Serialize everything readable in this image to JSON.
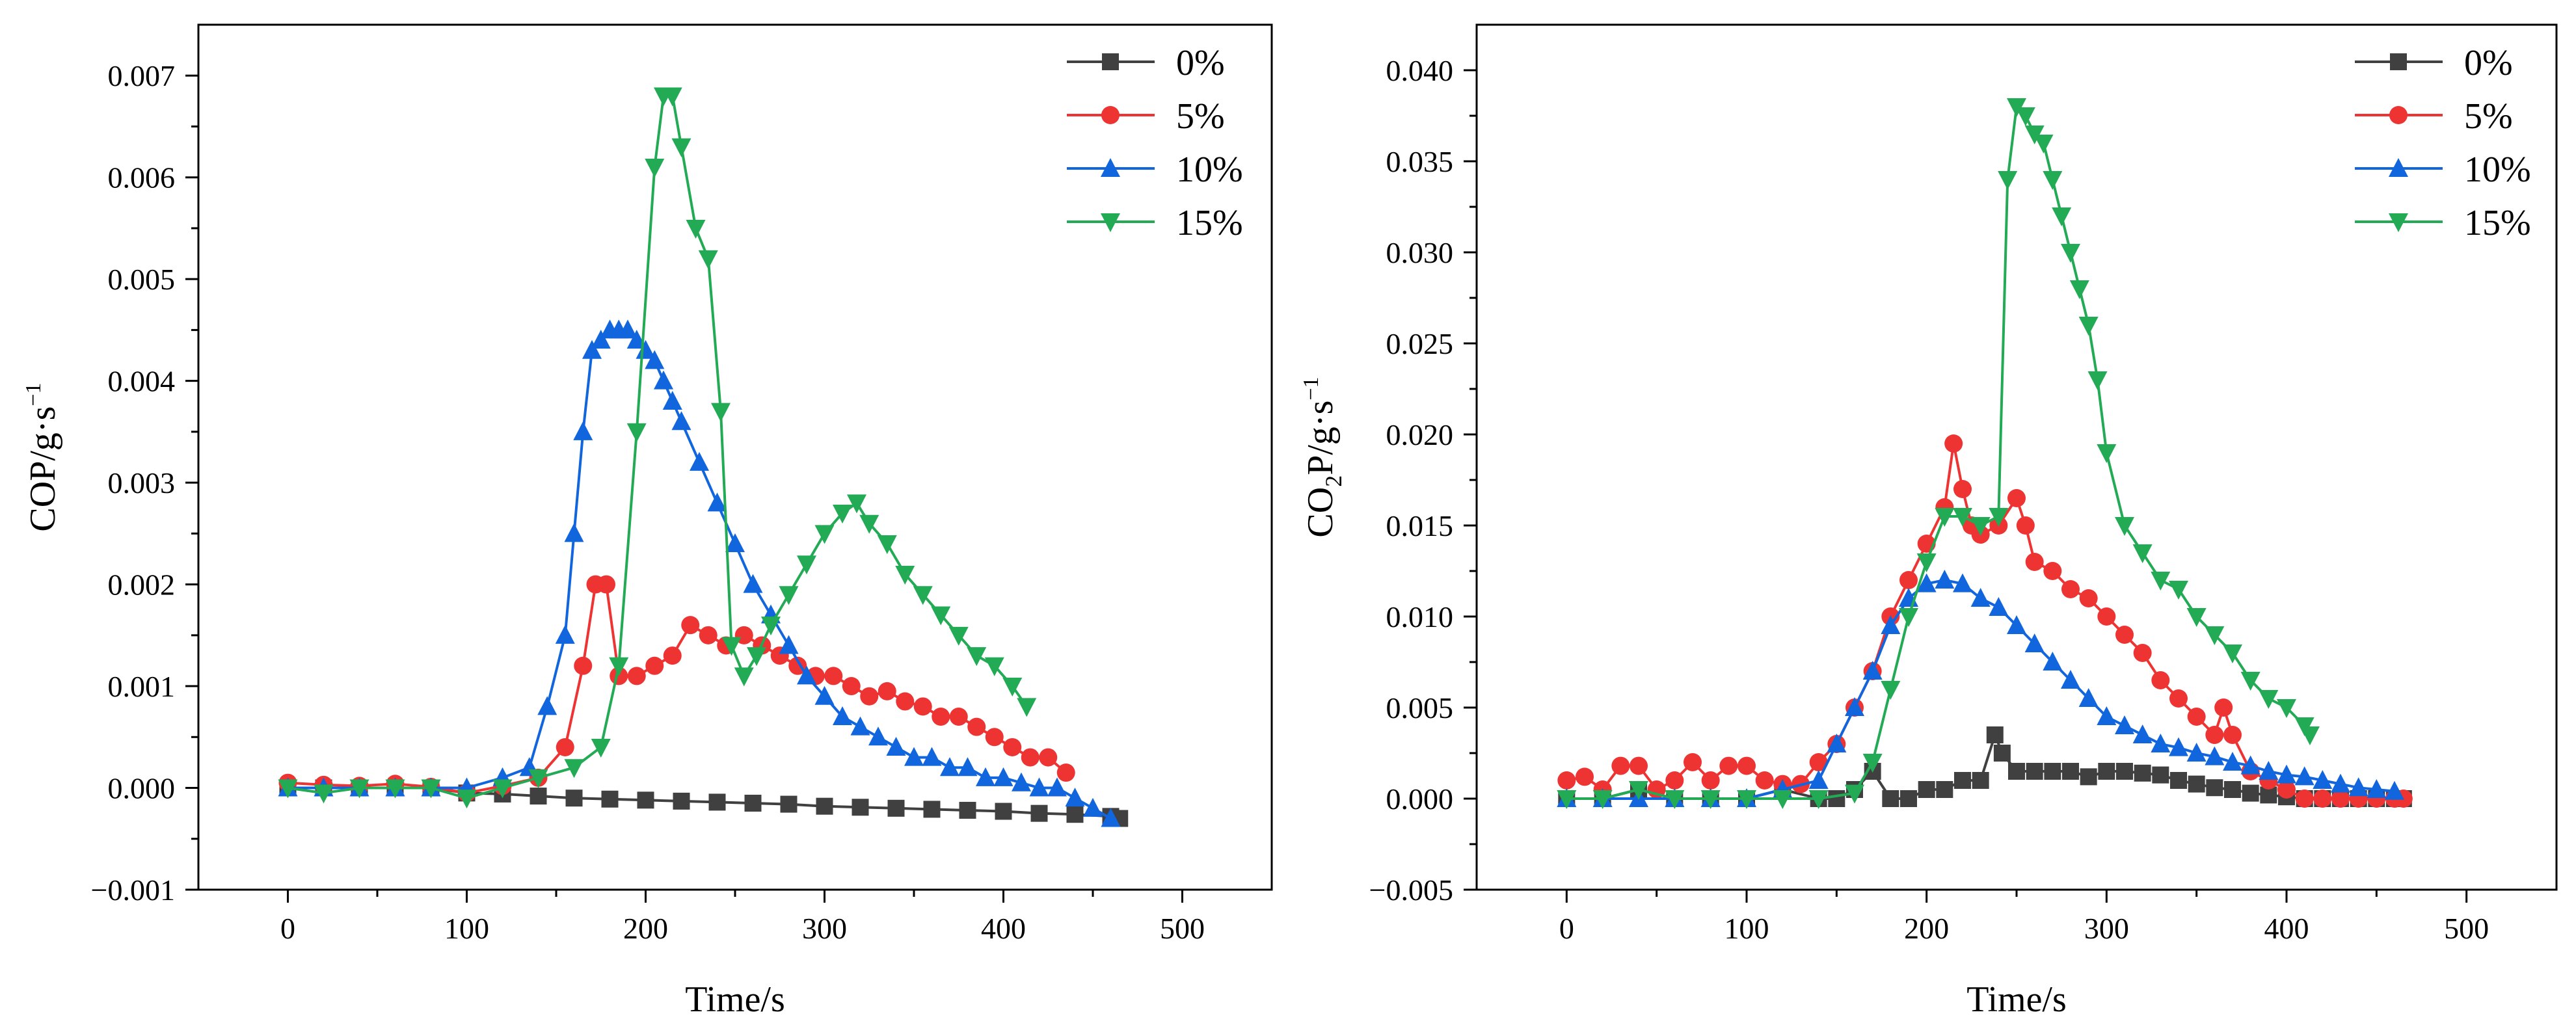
{
  "chart_data": [
    {
      "type": "line",
      "xlabel": "Time/s",
      "ylabel_text": "COP/g·s",
      "ylabel_sup": "−1",
      "xlim": [
        -50,
        550
      ],
      "ylim": [
        -0.001,
        0.0075
      ],
      "x_ticks": [
        0,
        100,
        200,
        300,
        400,
        500
      ],
      "x_tick_labels": [
        "0",
        "100",
        "200",
        "300",
        "400",
        "500"
      ],
      "y_ticks": [
        -0.001,
        0.0,
        0.001,
        0.002,
        0.003,
        0.004,
        0.005,
        0.006,
        0.007
      ],
      "y_tick_labels": [
        "−0.001",
        "0.000",
        "0.001",
        "0.002",
        "0.003",
        "0.004",
        "0.005",
        "0.006",
        "0.007"
      ],
      "legend_position": "top-right",
      "series": [
        {
          "name": "0%",
          "color": "#404040",
          "marker": "square",
          "x": [
            0,
            20,
            40,
            60,
            80,
            100,
            120,
            140,
            160,
            180,
            200,
            220,
            240,
            260,
            280,
            300,
            320,
            340,
            360,
            380,
            400,
            420,
            440,
            460,
            465
          ],
          "y": [
            0.0,
            0.0,
            0.0,
            0.0,
            0.0,
            -5e-05,
            -6e-05,
            -8e-05,
            -0.0001,
            -0.00011,
            -0.00012,
            -0.00013,
            -0.00014,
            -0.00015,
            -0.00016,
            -0.00018,
            -0.00019,
            -0.0002,
            -0.00021,
            -0.00022,
            -0.00023,
            -0.00025,
            -0.00026,
            -0.00028,
            -0.0003
          ]
        },
        {
          "name": "5%",
          "color": "#ee3333",
          "marker": "circle",
          "x": [
            0,
            20,
            40,
            60,
            80,
            100,
            120,
            140,
            155,
            165,
            172,
            178,
            185,
            195,
            205,
            215,
            225,
            235,
            245,
            255,
            265,
            275,
            285,
            295,
            305,
            315,
            325,
            335,
            345,
            355,
            365,
            375,
            385,
            395,
            405,
            415,
            425,
            435
          ],
          "y": [
            5e-05,
            3e-05,
            2e-05,
            4e-05,
            1e-05,
            -5e-05,
            2e-05,
            0.0001,
            0.0004,
            0.0012,
            0.002,
            0.002,
            0.0011,
            0.0011,
            0.0012,
            0.0013,
            0.0016,
            0.0015,
            0.0014,
            0.0015,
            0.0014,
            0.0013,
            0.0012,
            0.0011,
            0.0011,
            0.001,
            0.0009,
            0.00095,
            0.00085,
            0.0008,
            0.0007,
            0.0007,
            0.0006,
            0.0005,
            0.0004,
            0.0003,
            0.0003,
            0.00015
          ]
        },
        {
          "name": "10%",
          "color": "#1166dd",
          "marker": "triangle-up",
          "x": [
            0,
            20,
            40,
            60,
            80,
            100,
            120,
            135,
            145,
            155,
            160,
            165,
            170,
            175,
            180,
            185,
            190,
            195,
            200,
            205,
            210,
            215,
            220,
            230,
            240,
            250,
            260,
            270,
            280,
            290,
            300,
            310,
            320,
            330,
            340,
            350,
            360,
            370,
            380,
            390,
            400,
            410,
            420,
            430,
            440,
            450,
            460
          ],
          "y": [
            0.0,
            0.0,
            0.0,
            0.0,
            0.0,
            0.0,
            0.0001,
            0.0002,
            0.0008,
            0.0015,
            0.0025,
            0.0035,
            0.0043,
            0.0044,
            0.0045,
            0.0045,
            0.0045,
            0.0044,
            0.0043,
            0.0042,
            0.004,
            0.0038,
            0.0036,
            0.0032,
            0.0028,
            0.0024,
            0.002,
            0.0017,
            0.0014,
            0.0011,
            0.0009,
            0.0007,
            0.0006,
            0.0005,
            0.0004,
            0.0003,
            0.0003,
            0.0002,
            0.0002,
            0.0001,
            0.0001,
            5e-05,
            0.0,
            0.0,
            -0.0001,
            -0.0002,
            -0.0003
          ]
        },
        {
          "name": "15%",
          "color": "#22aa55",
          "marker": "triangle-down",
          "x": [
            0,
            20,
            40,
            60,
            80,
            100,
            120,
            140,
            160,
            175,
            185,
            195,
            205,
            210,
            215,
            220,
            228,
            235,
            242,
            248,
            255,
            262,
            270,
            280,
            290,
            300,
            310,
            318,
            325,
            335,
            345,
            355,
            365,
            375,
            385,
            395,
            405,
            413
          ],
          "y": [
            0.0,
            -5e-05,
            0.0,
            0.0,
            0.0,
            -0.0001,
            0.0,
            0.0001,
            0.0002,
            0.0004,
            0.0012,
            0.0035,
            0.0061,
            0.0068,
            0.0068,
            0.0063,
            0.0055,
            0.0052,
            0.0037,
            0.0014,
            0.0011,
            0.0013,
            0.0016,
            0.0019,
            0.0022,
            0.0025,
            0.0027,
            0.0028,
            0.0026,
            0.0024,
            0.0021,
            0.0019,
            0.0017,
            0.0015,
            0.0013,
            0.0012,
            0.001,
            0.0008
          ]
        }
      ]
    },
    {
      "type": "line",
      "xlabel": "Time/s",
      "ylabel_text": "CO",
      "ylabel_sub": "2",
      "ylabel_text2": "P/g·s",
      "ylabel_sup": "−1",
      "xlim": [
        -50,
        550
      ],
      "ylim": [
        -0.005,
        0.0425
      ],
      "x_ticks": [
        0,
        100,
        200,
        300,
        400,
        500
      ],
      "x_tick_labels": [
        "0",
        "100",
        "200",
        "300",
        "400",
        "500"
      ],
      "y_ticks": [
        -0.005,
        0.0,
        0.005,
        0.01,
        0.015,
        0.02,
        0.025,
        0.03,
        0.035,
        0.04
      ],
      "y_tick_labels": [
        "−0.005",
        "0.000",
        "0.005",
        "0.010",
        "0.015",
        "0.020",
        "0.025",
        "0.030",
        "0.035",
        "0.040"
      ],
      "legend_position": "top-right",
      "series": [
        {
          "name": "0%",
          "color": "#404040",
          "marker": "square",
          "x": [
            0,
            20,
            40,
            60,
            80,
            100,
            120,
            140,
            150,
            160,
            170,
            180,
            190,
            200,
            210,
            220,
            230,
            238,
            242,
            250,
            260,
            270,
            280,
            290,
            300,
            310,
            320,
            330,
            340,
            350,
            360,
            370,
            380,
            390,
            400,
            410,
            420,
            430,
            440,
            450,
            460,
            465
          ],
          "y": [
            0.0,
            0.0,
            0.0005,
            0.0,
            0.0,
            0.0,
            0.0005,
            0.0,
            0.0,
            0.0005,
            0.0015,
            0.0,
            0.0,
            0.0005,
            0.0005,
            0.001,
            0.001,
            0.0035,
            0.0025,
            0.0015,
            0.0015,
            0.0015,
            0.0015,
            0.0012,
            0.0015,
            0.0015,
            0.0014,
            0.0013,
            0.001,
            0.0008,
            0.0006,
            0.0005,
            0.0003,
            0.0002,
            0.0001,
            0.0,
            0.0,
            0.0,
            0.0,
            0.0,
            0.0,
            0.0
          ]
        },
        {
          "name": "5%",
          "color": "#ee3333",
          "marker": "circle",
          "x": [
            0,
            10,
            20,
            30,
            40,
            50,
            60,
            70,
            80,
            90,
            100,
            110,
            120,
            130,
            140,
            150,
            160,
            170,
            180,
            190,
            200,
            210,
            215,
            220,
            225,
            230,
            240,
            250,
            255,
            260,
            270,
            280,
            290,
            300,
            310,
            320,
            330,
            340,
            350,
            360,
            365,
            370,
            380,
            390,
            400,
            410,
            420,
            430,
            440,
            450,
            460,
            465
          ],
          "y": [
            0.001,
            0.0012,
            0.0005,
            0.0018,
            0.0018,
            0.0005,
            0.001,
            0.002,
            0.001,
            0.0018,
            0.0018,
            0.001,
            0.0008,
            0.0008,
            0.002,
            0.003,
            0.005,
            0.007,
            0.01,
            0.012,
            0.014,
            0.016,
            0.0195,
            0.017,
            0.015,
            0.0145,
            0.015,
            0.0165,
            0.015,
            0.013,
            0.0125,
            0.0115,
            0.011,
            0.01,
            0.009,
            0.008,
            0.0065,
            0.0055,
            0.0045,
            0.0035,
            0.005,
            0.0035,
            0.0015,
            0.001,
            0.0005,
            0.0,
            0.0,
            0.0,
            0.0,
            0.0,
            0.0,
            0.0
          ]
        },
        {
          "name": "10%",
          "color": "#1166dd",
          "marker": "triangle-up",
          "x": [
            0,
            20,
            40,
            60,
            80,
            100,
            120,
            140,
            150,
            160,
            170,
            180,
            190,
            200,
            210,
            220,
            230,
            240,
            250,
            260,
            270,
            280,
            290,
            300,
            310,
            320,
            330,
            340,
            350,
            360,
            370,
            380,
            390,
            400,
            410,
            420,
            430,
            440,
            450,
            460
          ],
          "y": [
            0.0,
            0.0,
            0.0,
            0.0,
            0.0,
            0.0,
            0.0005,
            0.001,
            0.003,
            0.005,
            0.007,
            0.0095,
            0.011,
            0.0118,
            0.012,
            0.0118,
            0.011,
            0.0105,
            0.0095,
            0.0085,
            0.0075,
            0.0065,
            0.0055,
            0.0045,
            0.004,
            0.0035,
            0.003,
            0.0028,
            0.0025,
            0.0023,
            0.002,
            0.0018,
            0.0015,
            0.0013,
            0.0012,
            0.001,
            0.0008,
            0.0006,
            0.0005,
            0.0004
          ]
        },
        {
          "name": "15%",
          "color": "#22aa55",
          "marker": "triangle-down",
          "x": [
            0,
            20,
            40,
            60,
            80,
            100,
            120,
            140,
            160,
            170,
            180,
            190,
            200,
            210,
            220,
            230,
            240,
            245,
            250,
            255,
            260,
            265,
            270,
            275,
            280,
            285,
            290,
            295,
            300,
            310,
            320,
            330,
            340,
            350,
            360,
            370,
            380,
            390,
            400,
            410,
            413
          ],
          "y": [
            0.0,
            0.0,
            0.0005,
            0.0,
            0.0,
            0.0,
            0.0,
            0.0,
            0.0003,
            0.002,
            0.006,
            0.01,
            0.013,
            0.0155,
            0.0155,
            0.015,
            0.0155,
            0.034,
            0.038,
            0.0375,
            0.0365,
            0.036,
            0.034,
            0.032,
            0.03,
            0.028,
            0.026,
            0.023,
            0.019,
            0.015,
            0.0135,
            0.012,
            0.0115,
            0.01,
            0.009,
            0.008,
            0.0065,
            0.0055,
            0.005,
            0.004,
            0.0035
          ]
        }
      ]
    }
  ]
}
